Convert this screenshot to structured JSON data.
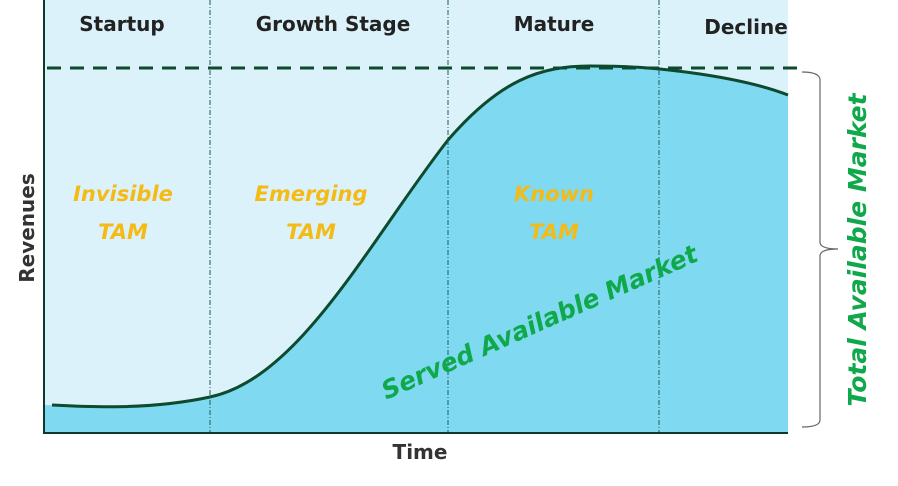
{
  "stages": [
    "Startup",
    "Growth Stage",
    "Mature",
    "Decline"
  ],
  "tam_labels": [
    {
      "line1": "Invisible",
      "line2": "TAM"
    },
    {
      "line1": "Emerging",
      "line2": "TAM"
    },
    {
      "line1": "Known",
      "line2": "TAM"
    }
  ],
  "served_label": "Served Available Market",
  "total_label": "Total Available Market",
  "x_axis_label": "Time",
  "y_axis_label": "Revenues",
  "colors": {
    "background": "#dcf2fb",
    "fill": "#7fd9f1",
    "curve": "#0d4a2e",
    "tam_text": "#f4bb16",
    "market_text": "#0fa84a"
  }
}
